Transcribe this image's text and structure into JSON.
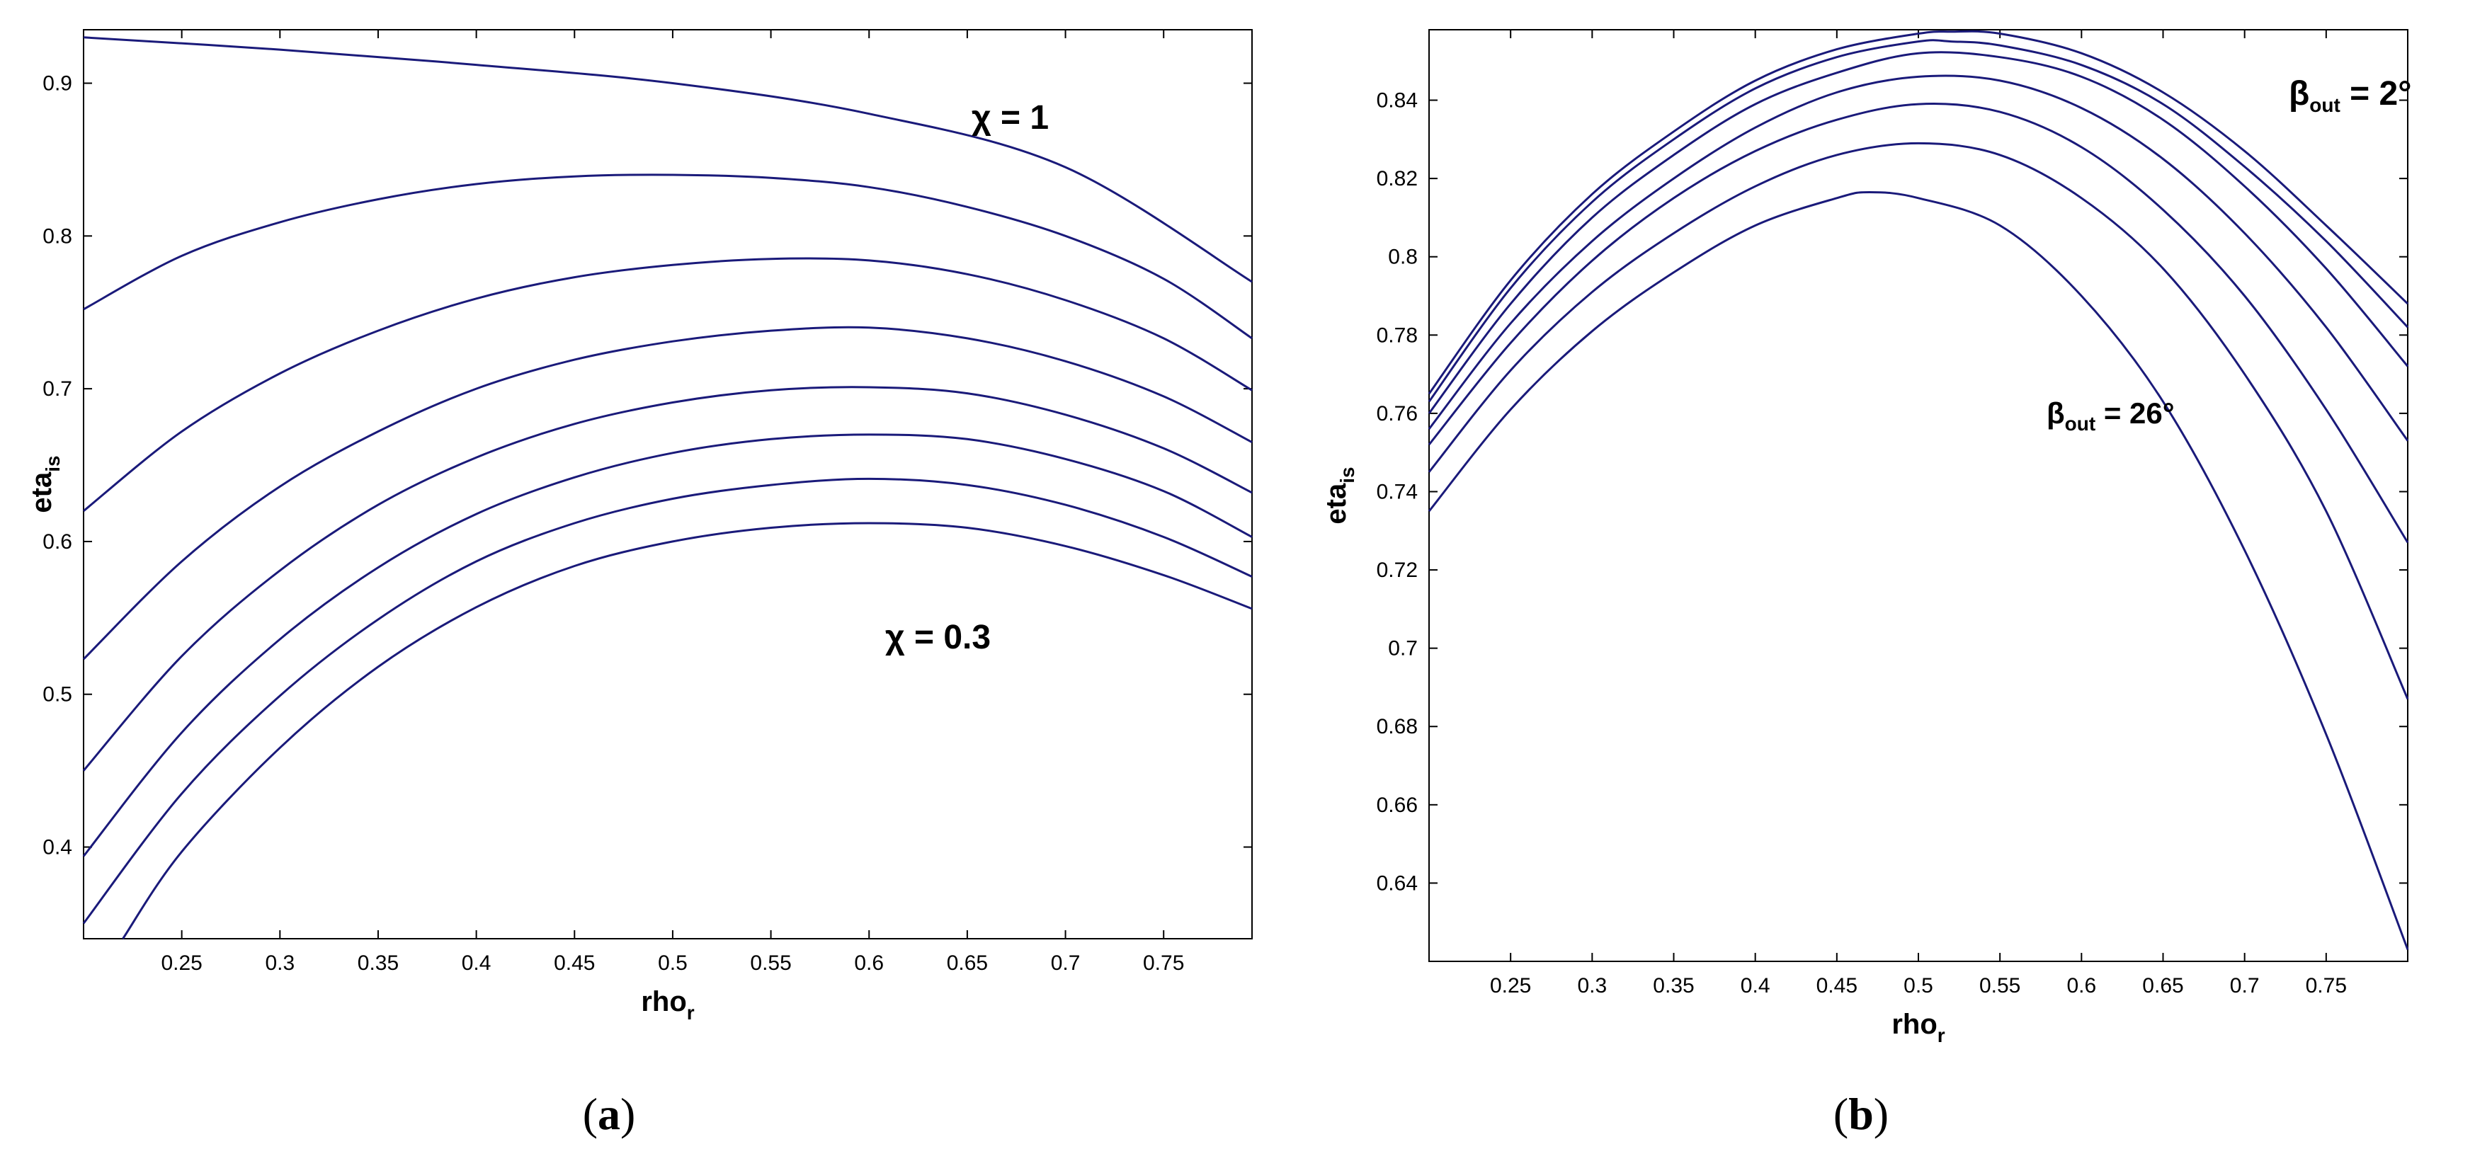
{
  "colors": {
    "series": "#1a1a7a",
    "axis": "#000000",
    "background": "#ffffff"
  },
  "chart_data": [
    {
      "type": "line",
      "panel_label": "a",
      "xlabel": "rho",
      "xlabel_sub": "r",
      "ylabel": "eta",
      "ylabel_sub": "is",
      "xlim": [
        0.2,
        0.795
      ],
      "ylim": [
        0.34,
        0.935
      ],
      "xticks": [
        "0.25",
        "0.3",
        "0.35",
        "0.4",
        "0.45",
        "0.5",
        "0.55",
        "0.6",
        "0.65",
        "0.7",
        "0.75"
      ],
      "yticks": [
        "0.4",
        "0.5",
        "0.6",
        "0.7",
        "0.8",
        "0.9"
      ],
      "grid": false,
      "annotations": [
        {
          "text": "χ = 1",
          "sub": "",
          "tail": ""
        },
        {
          "text": "χ = 0.3",
          "sub": "",
          "tail": ""
        }
      ],
      "series": [
        {
          "x": [
            0.2,
            0.3,
            0.4,
            0.5,
            0.6,
            0.7,
            0.795
          ],
          "y": [
            0.93,
            0.922,
            0.912,
            0.9,
            0.88,
            0.845,
            0.77
          ]
        },
        {
          "x": [
            0.2,
            0.25,
            0.3,
            0.35,
            0.4,
            0.45,
            0.5,
            0.55,
            0.6,
            0.65,
            0.7,
            0.75,
            0.795
          ],
          "y": [
            0.752,
            0.787,
            0.809,
            0.824,
            0.834,
            0.839,
            0.84,
            0.838,
            0.832,
            0.819,
            0.8,
            0.772,
            0.733
          ]
        },
        {
          "x": [
            0.2,
            0.25,
            0.3,
            0.35,
            0.4,
            0.45,
            0.5,
            0.55,
            0.6,
            0.65,
            0.7,
            0.75,
            0.795
          ],
          "y": [
            0.62,
            0.672,
            0.71,
            0.738,
            0.759,
            0.773,
            0.781,
            0.785,
            0.784,
            0.775,
            0.758,
            0.733,
            0.699
          ]
        },
        {
          "x": [
            0.2,
            0.25,
            0.3,
            0.35,
            0.4,
            0.45,
            0.5,
            0.55,
            0.6,
            0.65,
            0.7,
            0.75,
            0.795
          ],
          "y": [
            0.523,
            0.587,
            0.636,
            0.672,
            0.7,
            0.719,
            0.731,
            0.738,
            0.74,
            0.733,
            0.718,
            0.695,
            0.665
          ]
        },
        {
          "x": [
            0.2,
            0.25,
            0.3,
            0.35,
            0.4,
            0.45,
            0.5,
            0.55,
            0.6,
            0.65,
            0.7,
            0.75,
            0.795
          ],
          "y": [
            0.45,
            0.525,
            0.581,
            0.624,
            0.655,
            0.677,
            0.691,
            0.699,
            0.701,
            0.697,
            0.683,
            0.661,
            0.632
          ]
        },
        {
          "x": [
            0.2,
            0.25,
            0.3,
            0.35,
            0.4,
            0.45,
            0.5,
            0.55,
            0.6,
            0.65,
            0.7,
            0.75,
            0.795
          ],
          "y": [
            0.394,
            0.475,
            0.536,
            0.583,
            0.618,
            0.642,
            0.658,
            0.667,
            0.67,
            0.667,
            0.654,
            0.633,
            0.603
          ]
        },
        {
          "x": [
            0.2,
            0.25,
            0.3,
            0.35,
            0.4,
            0.45,
            0.5,
            0.55,
            0.6,
            0.65,
            0.7,
            0.75,
            0.795
          ],
          "y": [
            0.35,
            0.435,
            0.499,
            0.549,
            0.587,
            0.612,
            0.628,
            0.637,
            0.641,
            0.637,
            0.624,
            0.603,
            0.577
          ]
        },
        {
          "x": [
            0.22,
            0.25,
            0.3,
            0.35,
            0.4,
            0.45,
            0.5,
            0.55,
            0.6,
            0.65,
            0.7,
            0.75,
            0.795
          ],
          "y": [
            0.34,
            0.397,
            0.465,
            0.518,
            0.557,
            0.584,
            0.6,
            0.609,
            0.612,
            0.609,
            0.597,
            0.578,
            0.556
          ]
        }
      ]
    },
    {
      "type": "line",
      "panel_label": "b",
      "xlabel": "rho",
      "xlabel_sub": "r",
      "ylabel": "eta",
      "ylabel_sub": "is",
      "xlim": [
        0.2,
        0.8
      ],
      "ylim": [
        0.62,
        0.858
      ],
      "xticks": [
        "0.25",
        "0.3",
        "0.35",
        "0.4",
        "0.45",
        "0.5",
        "0.55",
        "0.6",
        "0.65",
        "0.7",
        "0.75"
      ],
      "yticks": [
        "0.64",
        "0.66",
        "0.68",
        "0.7",
        "0.72",
        "0.74",
        "0.76",
        "0.78",
        "0.8",
        "0.82",
        "0.84"
      ],
      "grid": false,
      "annotations": [
        {
          "text": "β",
          "sub": "out",
          "tail": " = 2°"
        },
        {
          "text": "β",
          "sub": "out",
          "tail": " = 26°"
        }
      ],
      "series": [
        {
          "x": [
            0.2,
            0.25,
            0.3,
            0.35,
            0.4,
            0.45,
            0.5,
            0.52,
            0.55,
            0.6,
            0.65,
            0.7,
            0.75,
            0.8
          ],
          "y": [
            0.765,
            0.794,
            0.816,
            0.832,
            0.845,
            0.853,
            0.857,
            0.8575,
            0.857,
            0.852,
            0.842,
            0.827,
            0.808,
            0.788
          ]
        },
        {
          "x": [
            0.2,
            0.25,
            0.3,
            0.35,
            0.4,
            0.45,
            0.5,
            0.52,
            0.55,
            0.6,
            0.65,
            0.7,
            0.75,
            0.8
          ],
          "y": [
            0.763,
            0.792,
            0.814,
            0.83,
            0.843,
            0.851,
            0.855,
            0.855,
            0.854,
            0.849,
            0.839,
            0.823,
            0.804,
            0.782
          ]
        },
        {
          "x": [
            0.2,
            0.25,
            0.3,
            0.35,
            0.4,
            0.45,
            0.5,
            0.55,
            0.6,
            0.65,
            0.7,
            0.75,
            0.8
          ],
          "y": [
            0.76,
            0.788,
            0.81,
            0.826,
            0.839,
            0.847,
            0.852,
            0.851,
            0.846,
            0.835,
            0.818,
            0.797,
            0.772
          ]
        },
        {
          "x": [
            0.2,
            0.25,
            0.3,
            0.35,
            0.4,
            0.45,
            0.5,
            0.55,
            0.6,
            0.65,
            0.7,
            0.75,
            0.8
          ],
          "y": [
            0.756,
            0.783,
            0.804,
            0.82,
            0.833,
            0.842,
            0.846,
            0.845,
            0.838,
            0.825,
            0.806,
            0.782,
            0.753
          ]
        },
        {
          "x": [
            0.2,
            0.25,
            0.3,
            0.35,
            0.4,
            0.45,
            0.5,
            0.55,
            0.6,
            0.65,
            0.7,
            0.75,
            0.8
          ],
          "y": [
            0.752,
            0.778,
            0.799,
            0.815,
            0.827,
            0.835,
            0.839,
            0.837,
            0.828,
            0.812,
            0.79,
            0.761,
            0.727
          ]
        },
        {
          "x": [
            0.2,
            0.25,
            0.3,
            0.35,
            0.4,
            0.45,
            0.5,
            0.55,
            0.6,
            0.65,
            0.7,
            0.75,
            0.8
          ],
          "y": [
            0.745,
            0.771,
            0.791,
            0.806,
            0.818,
            0.826,
            0.829,
            0.826,
            0.815,
            0.797,
            0.77,
            0.735,
            0.687
          ]
        },
        {
          "x": [
            0.2,
            0.25,
            0.3,
            0.35,
            0.4,
            0.45,
            0.47,
            0.5,
            0.55,
            0.6,
            0.65,
            0.7,
            0.75,
            0.8
          ],
          "y": [
            0.735,
            0.761,
            0.781,
            0.796,
            0.808,
            0.815,
            0.8165,
            0.815,
            0.808,
            0.79,
            0.763,
            0.725,
            0.678,
            0.623
          ]
        }
      ]
    }
  ]
}
